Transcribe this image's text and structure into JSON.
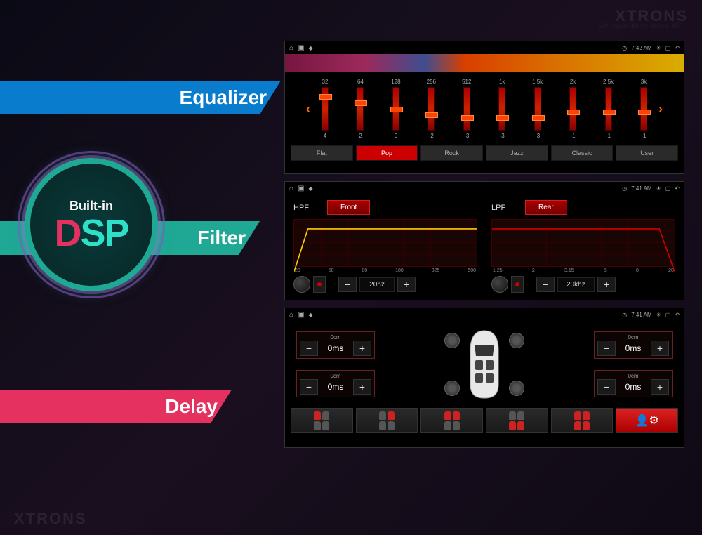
{
  "brand": "XTRONS",
  "copyright": "///// copyright by xtrons /////",
  "tabs": {
    "equalizer": "Equalizer",
    "filter": "Filter",
    "delay": "Delay"
  },
  "badge": {
    "builtin": "Built-in",
    "dsp": "DSP"
  },
  "status": {
    "time1": "7:42 AM",
    "time2": "7:41 AM",
    "time3": "7:41 AM"
  },
  "equalizer": {
    "bands": [
      {
        "freq": "32",
        "val": "4",
        "knob_pct": 15
      },
      {
        "freq": "64",
        "val": "2",
        "knob_pct": 30
      },
      {
        "freq": "128",
        "val": "0",
        "knob_pct": 45
      },
      {
        "freq": "256",
        "val": "-2",
        "knob_pct": 58
      },
      {
        "freq": "512",
        "val": "-3",
        "knob_pct": 65
      },
      {
        "freq": "1k",
        "val": "-3",
        "knob_pct": 65
      },
      {
        "freq": "1.5k",
        "val": "-3",
        "knob_pct": 65
      },
      {
        "freq": "2k",
        "val": "-1",
        "knob_pct": 52
      },
      {
        "freq": "2.5k",
        "val": "-1",
        "knob_pct": 52
      },
      {
        "freq": "3k",
        "val": "-1",
        "knob_pct": 52
      }
    ],
    "presets": [
      "Flat",
      "Pop",
      "Rock",
      "Jazz",
      "Classic",
      "User"
    ],
    "active_preset": 1
  },
  "filter": {
    "hpf": {
      "type_label": "HPF",
      "region": "Front",
      "ticks": [
        "20",
        "50",
        "80",
        "180",
        "325",
        "500"
      ],
      "value": "20hz"
    },
    "lpf": {
      "type_label": "LPF",
      "region": "Rear",
      "ticks": [
        "1.25",
        "2",
        "3.15",
        "5",
        "8",
        "20"
      ],
      "value": "20khz"
    }
  },
  "delay": {
    "corners": {
      "fl": {
        "cm": "0cm",
        "ms": "0ms"
      },
      "fr": {
        "cm": "0cm",
        "ms": "0ms"
      },
      "rl": {
        "cm": "0cm",
        "ms": "0ms"
      },
      "rr": {
        "cm": "0cm",
        "ms": "0ms"
      }
    },
    "seat_presets": 6,
    "active_seat": 5
  },
  "colors": {
    "eq_tab": "#0a7cce",
    "filter_tab": "#1fa894",
    "delay_tab": "#e5315f",
    "panel_bg": "#000000",
    "slider_track": "#aa0000",
    "slider_knob": "#ff4400",
    "active_red": "#cc0000",
    "text_dim": "#aaaaaa"
  }
}
